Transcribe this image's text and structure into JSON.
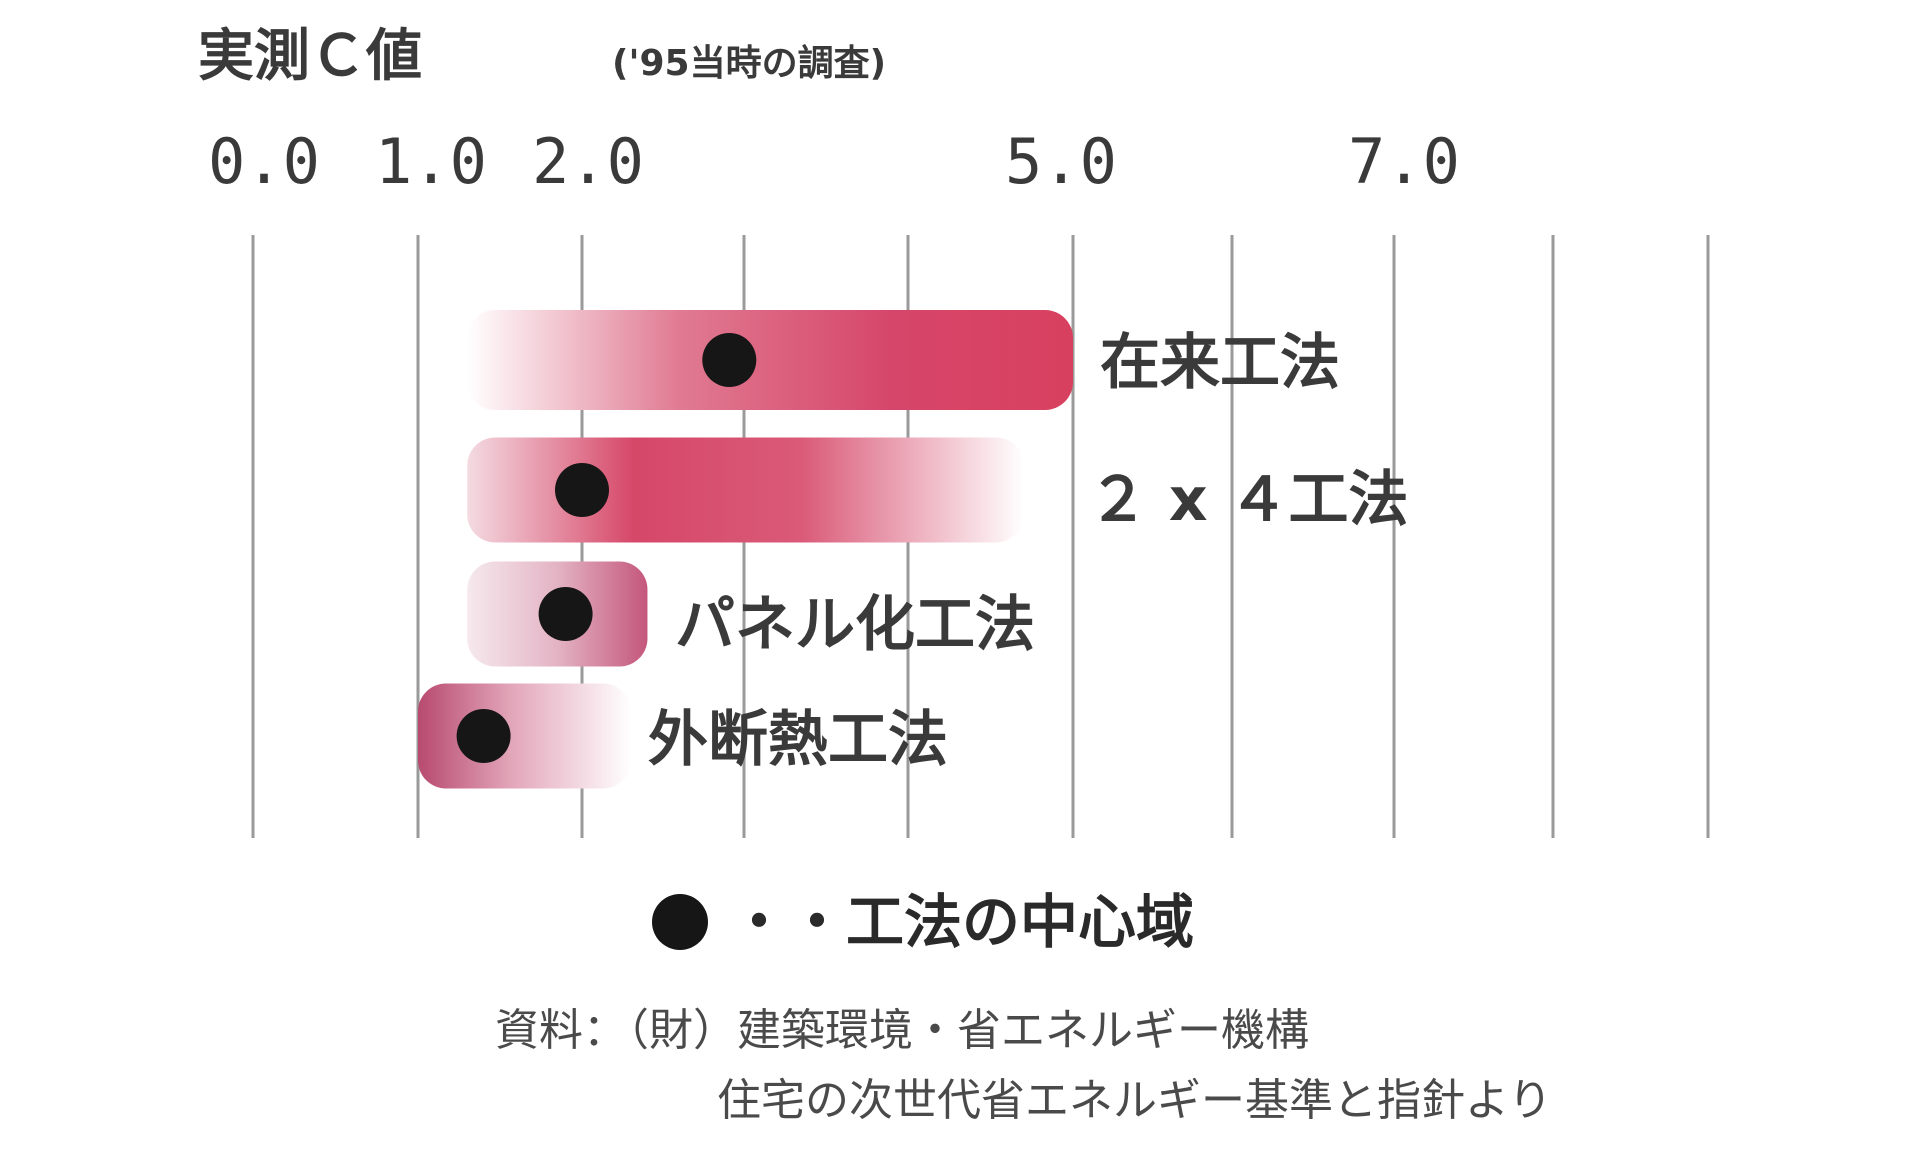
{
  "chart_data": {
    "type": "bar",
    "title": "実測Ｃ値",
    "subtitle": "('95当時の調査)",
    "tick_labels": [
      "0.0",
      "1.0",
      "2.0",
      "5.0",
      "7.0"
    ],
    "categories": [
      "在来工法",
      "２ x ４工法",
      "パネル化工法",
      "外断熱工法"
    ],
    "ranges": [
      {
        "name": "在来工法",
        "low": 1.3,
        "high": 5.0,
        "center": 2.9,
        "color": "#d63a5e"
      },
      {
        "name": "２ x ４工法",
        "low": 1.3,
        "high": 4.7,
        "center": 2.0,
        "color": "#d63a5e"
      },
      {
        "name": "パネル化工法",
        "low": 1.3,
        "high": 2.4,
        "center": 1.9,
        "color": "#c24b6e"
      },
      {
        "name": "外断熱工法",
        "low": 1.0,
        "high": 2.3,
        "center": 1.4,
        "color": "#b24066"
      }
    ],
    "legend": {
      "marker": "●",
      "text": "・・工法の中心域",
      "placement": "bottom-center"
    },
    "source": [
      "資料：（財）建築環境・省エネルギー機構",
      "住宅の次世代省エネルギー基準と指針より"
    ],
    "grid": true
  }
}
